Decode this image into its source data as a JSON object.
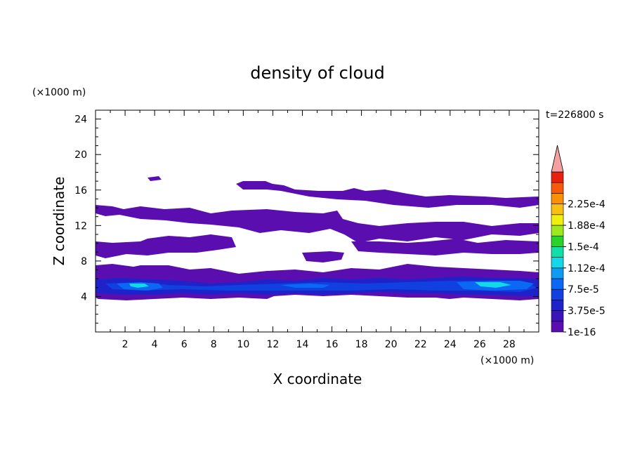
{
  "chart_data": {
    "type": "heatmap",
    "title": "density of cloud",
    "xlabel": "X coordinate",
    "ylabel": "Z coordinate",
    "x_unit": "(×1000 m)",
    "y_unit": "(×1000 m)",
    "time_label": "t=226800 s",
    "xlim": [
      0,
      30
    ],
    "ylim": [
      0,
      25
    ],
    "x_ticks": [
      "2",
      "4",
      "6",
      "8",
      "10",
      "12",
      "14",
      "16",
      "18",
      "20",
      "22",
      "24",
      "26",
      "28"
    ],
    "y_ticks": [
      "4",
      "8",
      "12",
      "16",
      "20",
      "24"
    ],
    "colorbar": {
      "labels": [
        "1e-16",
        "3.75e-5",
        "7.5e-5",
        "1.12e-4",
        "1.5e-4",
        "1.88e-4",
        "2.25e-4"
      ],
      "levels": [
        "#5a0eb0",
        "#3a14b8",
        "#1f22c8",
        "#1040e0",
        "#0a68f4",
        "#0e9cf2",
        "#12d8e8",
        "#10e0a8",
        "#28d428",
        "#9ee81e",
        "#f0f010",
        "#f8c010",
        "#f89008",
        "#f85a0c",
        "#e82010"
      ],
      "extend_color": "#f4a0a0"
    },
    "regions": [
      {
        "name": "upper-cloud-layer",
        "level": 0,
        "x_range": [
          10.8,
          30
        ],
        "z_range": [
          15.3,
          16.8
        ]
      },
      {
        "name": "small-cloud",
        "level": 0,
        "x_range": [
          3.5,
          4.3
        ],
        "z_range": [
          17.0,
          17.5
        ]
      },
      {
        "name": "cloud-layer-12-14",
        "level": 0,
        "x_range": [
          0,
          30
        ],
        "z_range": [
          11.7,
          14.0
        ]
      },
      {
        "name": "cloud-layer-8-10",
        "level": 0,
        "x_range": [
          0,
          30
        ],
        "z_range": [
          8.3,
          10.3
        ]
      },
      {
        "name": "low-cloud-base",
        "level": 0,
        "x_range": [
          0,
          30
        ],
        "z_range": [
          3.9,
          7.8
        ]
      },
      {
        "name": "dense-core",
        "level": 3,
        "x_range": [
          0,
          30
        ],
        "z_range": [
          4.4,
          5.8
        ]
      },
      {
        "name": "max-density-patch-1",
        "level": 5,
        "x_range": [
          2.5,
          4.8
        ],
        "z_range": [
          5.0,
          5.6
        ]
      },
      {
        "name": "max-density-patch-2",
        "level": 6,
        "x_range": [
          25.5,
          29.5
        ],
        "z_range": [
          5.0,
          5.9
        ]
      }
    ]
  }
}
